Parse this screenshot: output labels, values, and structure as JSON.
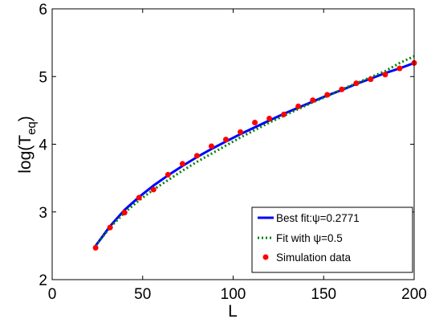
{
  "chart_data": {
    "type": "line",
    "xlabel": "L",
    "ylabel_main": "log(T",
    "ylabel_sub": "eq",
    "ylabel_close": ")",
    "xlim": [
      0,
      200
    ],
    "ylim": [
      2,
      6
    ],
    "xticks": [
      0,
      50,
      100,
      150,
      200
    ],
    "yticks": [
      2,
      3,
      4,
      5,
      6
    ],
    "grid": false,
    "legend_position": "bottom-right",
    "series": [
      {
        "name": "Best fit:ψ=0.2771",
        "style": "solid",
        "color": "#0000ff",
        "x": [
          24,
          32,
          40,
          48,
          56,
          64,
          72,
          80,
          88,
          96,
          104,
          112,
          120,
          128,
          136,
          144,
          152,
          160,
          168,
          176,
          184,
          192,
          200
        ],
        "y": [
          2.5,
          2.79,
          3.03,
          3.22,
          3.39,
          3.54,
          3.68,
          3.81,
          3.93,
          4.04,
          4.15,
          4.25,
          4.35,
          4.45,
          4.54,
          4.63,
          4.72,
          4.8,
          4.89,
          4.97,
          5.05,
          5.12,
          5.2
        ]
      },
      {
        "name": "Fit with ψ=0.5",
        "style": "dotted",
        "color": "#008000",
        "x": [
          24,
          32,
          40,
          48,
          56,
          64,
          72,
          80,
          88,
          96,
          104,
          112,
          120,
          128,
          136,
          144,
          152,
          160,
          168,
          176,
          184,
          192,
          200
        ],
        "y": [
          2.5,
          2.77,
          2.99,
          3.17,
          3.33,
          3.47,
          3.61,
          3.74,
          3.86,
          3.98,
          4.1,
          4.21,
          4.32,
          4.42,
          4.52,
          4.62,
          4.71,
          4.81,
          4.9,
          4.99,
          5.08,
          5.2,
          5.3
        ]
      },
      {
        "name": "Simulation data",
        "style": "markers",
        "color": "#ff0000",
        "x": [
          24,
          32,
          40,
          48,
          56,
          64,
          72,
          80,
          88,
          96,
          104,
          112,
          120,
          128,
          136,
          144,
          152,
          160,
          168,
          176,
          184,
          192,
          200
        ],
        "y": [
          2.47,
          2.77,
          2.99,
          3.21,
          3.33,
          3.55,
          3.71,
          3.83,
          3.97,
          4.07,
          4.18,
          4.32,
          4.38,
          4.44,
          4.56,
          4.65,
          4.73,
          4.81,
          4.9,
          4.96,
          5.03,
          5.12,
          5.2
        ]
      }
    ]
  }
}
